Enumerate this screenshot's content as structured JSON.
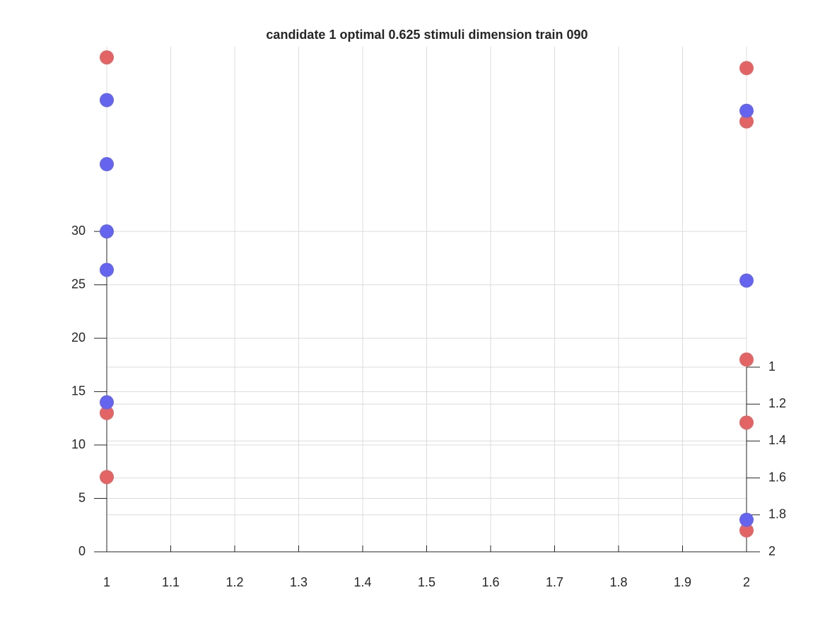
{
  "chart_data": {
    "type": "scatter",
    "title": "candidate 1 optimal 0.625 stimuli dimension train 090",
    "xlim": [
      1,
      2
    ],
    "xticks": [
      1,
      1.1,
      1.2,
      1.3,
      1.4,
      1.5,
      1.6,
      1.7,
      1.8,
      1.9,
      2
    ],
    "ylim": [
      0,
      47.3
    ],
    "yticks": [
      0,
      5,
      10,
      15,
      20,
      25,
      30
    ],
    "y2lim": [
      1,
      2
    ],
    "y2ticks": [
      1,
      1.2,
      1.4,
      1.6,
      1.8,
      2
    ],
    "y2_reversed": true,
    "grid": true,
    "series": [
      {
        "color": "#e26464",
        "x": [
          1,
          1,
          1,
          2,
          2,
          2,
          2,
          2
        ],
        "values": [
          46.3,
          13.0,
          7.0,
          45.3,
          40.3,
          18.0,
          12.1,
          2.0
        ]
      },
      {
        "color": "#6464ee",
        "x": [
          1,
          1,
          1,
          1,
          1,
          2,
          2,
          2
        ],
        "values": [
          42.3,
          36.3,
          30.0,
          26.4,
          14.0,
          41.3,
          25.4,
          3.0
        ]
      }
    ]
  }
}
